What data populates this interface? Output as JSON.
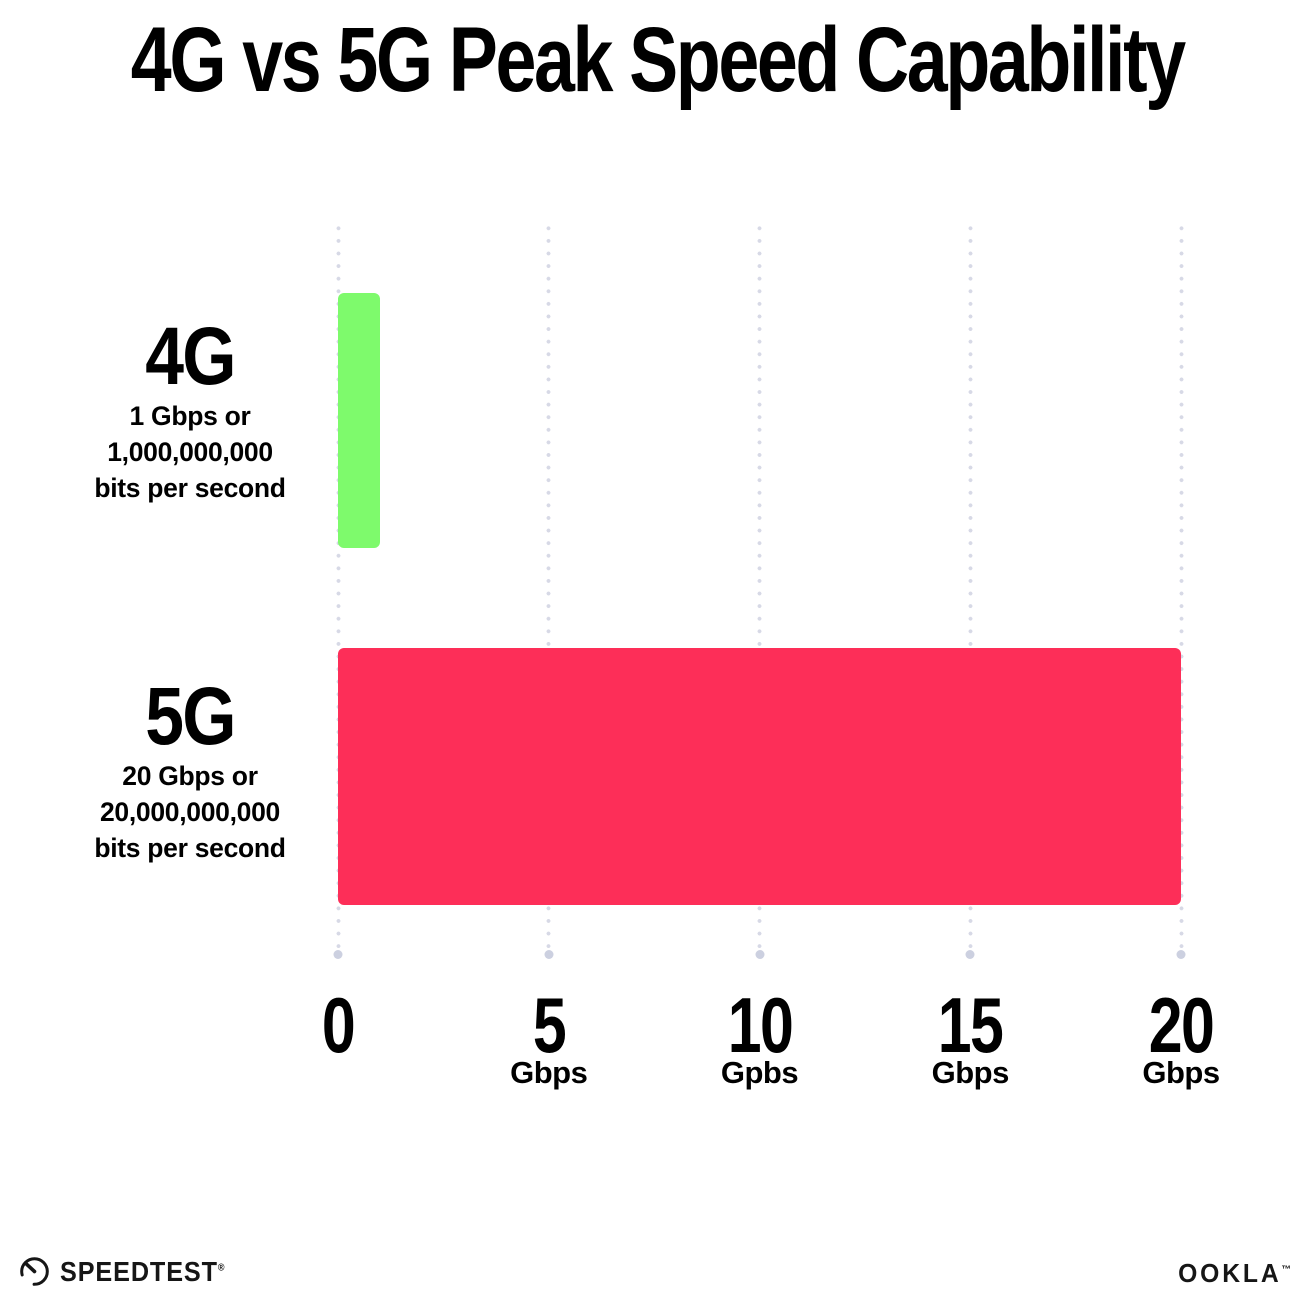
{
  "title": "4G vs 5G Peak Speed Capability",
  "chart_data": {
    "type": "bar",
    "orientation": "horizontal",
    "title": "4G vs 5G Peak Speed Capability",
    "categories": [
      "4G",
      "5G"
    ],
    "values": [
      1,
      20
    ],
    "value_unit": "Gbps",
    "category_descriptions": [
      "1 Gbps or 1,000,000,000 bits per second",
      "20 Gbps or 20,000,000,000 bits per second"
    ],
    "bar_colors": [
      "#7EFA6C",
      "#FD2E58"
    ],
    "xlim": [
      0,
      20
    ],
    "x_ticks": [
      {
        "value": "0",
        "unit": ""
      },
      {
        "value": "5",
        "unit": "Gbps"
      },
      {
        "value": "10",
        "unit": "Gpbs"
      },
      {
        "value": "15",
        "unit": "Gbps"
      },
      {
        "value": "20",
        "unit": "Gbps"
      }
    ],
    "grid": "vertical-dotted",
    "legend": "none"
  },
  "rows": [
    {
      "label": "4G",
      "sub1": "1 Gbps or",
      "sub2": "1,000,000,000",
      "sub3": "bits per second",
      "value": 1,
      "color": "#7EFA6C"
    },
    {
      "label": "5G",
      "sub1": "20 Gbps or",
      "sub2": "20,000,000,000",
      "sub3": "bits per second",
      "value": 20,
      "color": "#FD2E58"
    }
  ],
  "footer": {
    "speedtest_label": "SPEEDTEST",
    "speedtest_mark": "®",
    "ookla_label": "OOKLA",
    "ookla_mark": "™"
  },
  "colors": {
    "bar_4g": "#7EFA6C",
    "bar_5g": "#FD2E58",
    "gridline": "#d7d9e6",
    "text": "#000000",
    "background": "#ffffff"
  }
}
